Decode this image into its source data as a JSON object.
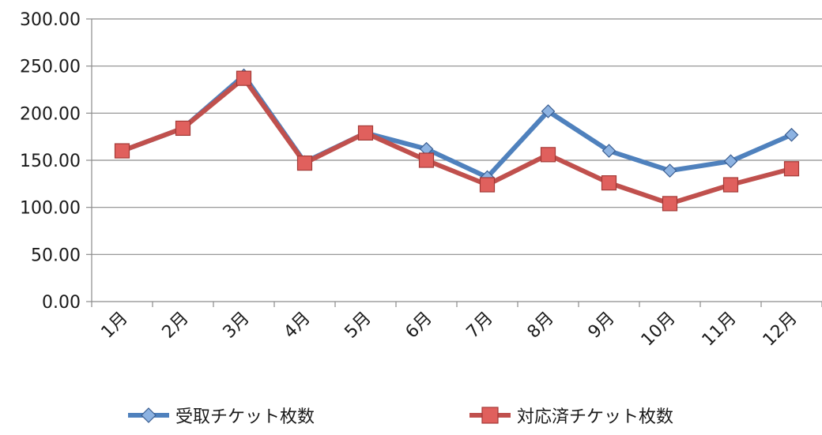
{
  "chart_data": {
    "type": "line",
    "categories": [
      "1月",
      "2月",
      "3月",
      "4月",
      "5月",
      "6月",
      "7月",
      "8月",
      "9月",
      "10月",
      "11月",
      "12月"
    ],
    "ylim": [
      0,
      300
    ],
    "yticks": [
      "0.00",
      "50.00",
      "100.00",
      "150.00",
      "200.00",
      "250.00",
      "300.00"
    ],
    "grid": true,
    "legend_position": "bottom",
    "series": [
      {
        "name": "受取チケット枚数",
        "color": "#4f81bd",
        "marker": "diamond",
        "values": [
          160,
          184,
          240,
          148,
          179,
          162,
          132,
          202,
          160,
          139,
          149,
          177
        ]
      },
      {
        "name": "対応済チケット枚数",
        "color": "#c0504d",
        "marker": "square",
        "values": [
          160,
          184,
          237,
          147,
          179,
          150,
          124,
          156,
          126,
          104,
          124,
          141
        ]
      }
    ]
  }
}
